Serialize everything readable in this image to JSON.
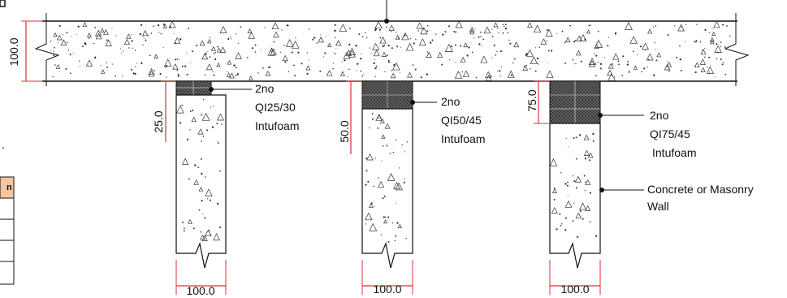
{
  "table_fragment": {
    "header_text": "n",
    "row_count": 4,
    "header_color": "#f7c59f"
  },
  "slab": {
    "thickness_label": "100.0"
  },
  "walls": [
    {
      "gap_label": "25.0",
      "width_label": "100.0",
      "callout": [
        "2no",
        "QI25/30",
        "Intufoam"
      ]
    },
    {
      "gap_label": "50.0",
      "width_label": "100.0",
      "callout": [
        "2no",
        "QI50/45",
        "Intufoam"
      ]
    },
    {
      "gap_label": "75.0",
      "width_label": "100.0",
      "callout": [
        "2no",
        "QI75/45",
        "Intufoam"
      ]
    }
  ],
  "wall_callout": [
    "Concrete or Masonry",
    "Wall"
  ],
  "colors": {
    "line": "#111111",
    "dim": "#e0303a",
    "seal": "#4a4a4a"
  }
}
